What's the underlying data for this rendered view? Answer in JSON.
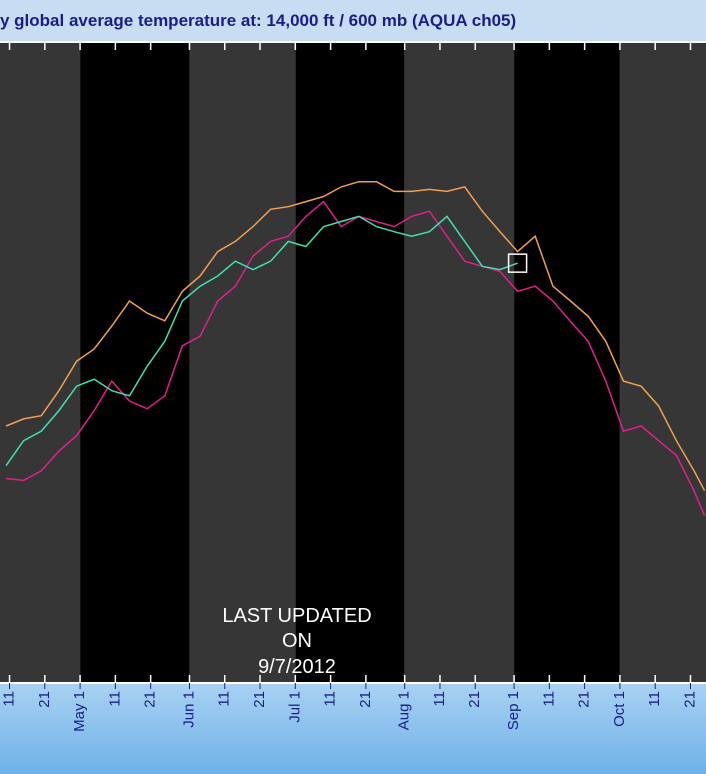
{
  "chart_data": {
    "type": "line",
    "title": "y global average temperature at: 14,000 ft / 600 mb (AQUA ch05)",
    "annotation": [
      "LAST UPDATED",
      "ON",
      "9/7/2012"
    ],
    "x": [
      100,
      105,
      110,
      115,
      120,
      125,
      130,
      135,
      140,
      145,
      150,
      155,
      160,
      165,
      170,
      175,
      180,
      185,
      190,
      195,
      200,
      205,
      210,
      215,
      220,
      225,
      230,
      235,
      240,
      245,
      250,
      255,
      260,
      265,
      270,
      275,
      280,
      285,
      290,
      295,
      298
    ],
    "series": [
      {
        "color": "#f0a050",
        "values": [
          40.1,
          41.2,
          41.7,
          45.6,
          50.2,
          52.1,
          55.7,
          59.6,
          57.7,
          56.5,
          61.1,
          63.5,
          67.3,
          68.9,
          71.2,
          73.9,
          74.3,
          75.1,
          75.9,
          77.4,
          78.2,
          78.2,
          76.7,
          76.7,
          77.0,
          76.7,
          77.4,
          73.6,
          70.4,
          67.3,
          69.7,
          61.9,
          59.6,
          57.2,
          53.3,
          47.1,
          46.3,
          43.2,
          37.8,
          33.1,
          30.0
        ]
      },
      {
        "color": "#e0208a",
        "values": [
          31.9,
          31.6,
          33.1,
          36.2,
          38.6,
          42.5,
          47.1,
          44.0,
          42.8,
          44.8,
          52.6,
          54.1,
          59.6,
          61.9,
          66.6,
          68.9,
          69.7,
          72.8,
          75.1,
          71.2,
          72.8,
          72.0,
          71.2,
          72.8,
          73.6,
          69.7,
          65.8,
          65.0,
          64.2,
          61.1,
          61.9,
          59.6,
          56.4,
          53.3,
          47.1,
          39.3,
          40.1,
          37.8,
          35.5,
          30.0,
          26.1
        ]
      },
      {
        "color": "#40e0b0",
        "values": [
          33.9,
          37.8,
          39.3,
          42.5,
          46.3,
          47.4,
          45.6,
          44.8,
          49.4,
          53.3,
          59.6,
          61.9,
          63.5,
          65.8,
          64.5,
          65.8,
          68.9,
          68.1,
          71.2,
          72.0,
          72.8,
          71.2,
          70.4,
          69.7,
          70.4,
          72.8,
          68.9,
          65.0,
          64.5,
          65.5,
          null,
          null,
          null,
          null,
          null,
          null,
          null,
          null,
          null,
          null,
          null
        ]
      }
    ],
    "xlim": [
      98.3,
      298.4
    ],
    "ylim": [
      0,
      100
    ],
    "xticks": [
      {
        "value": 101,
        "label": "11"
      },
      {
        "value": 111,
        "label": "21"
      },
      {
        "value": 121,
        "label": "May 1"
      },
      {
        "value": 131,
        "label": "11"
      },
      {
        "value": 141,
        "label": "21"
      },
      {
        "value": 152,
        "label": "Jun 1"
      },
      {
        "value": 162,
        "label": "11"
      },
      {
        "value": 172,
        "label": "21"
      },
      {
        "value": 182,
        "label": "Jul 1"
      },
      {
        "value": 192,
        "label": "11"
      },
      {
        "value": 202,
        "label": "21"
      },
      {
        "value": 213,
        "label": "Aug 1"
      },
      {
        "value": 223,
        "label": "11"
      },
      {
        "value": 233,
        "label": "21"
      },
      {
        "value": 244,
        "label": "Sep 1"
      },
      {
        "value": 254,
        "label": "11"
      },
      {
        "value": 264,
        "label": "21"
      },
      {
        "value": 274,
        "label": "Oct 1"
      },
      {
        "value": 284,
        "label": "11"
      },
      {
        "value": 294,
        "label": "21"
      }
    ]
  }
}
